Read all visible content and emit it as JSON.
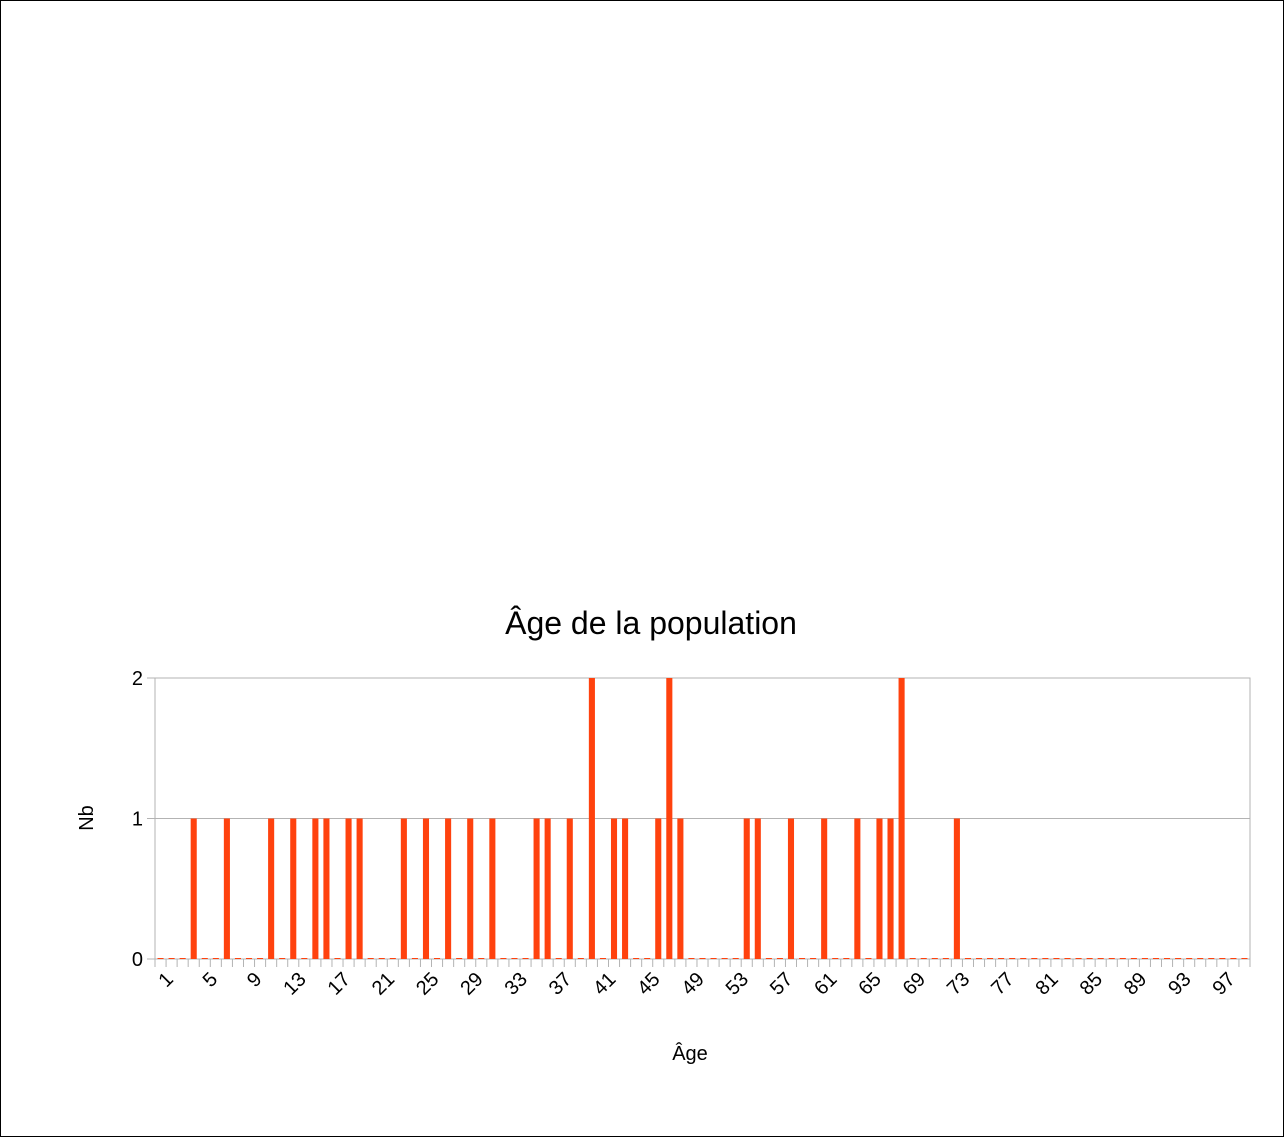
{
  "chart_data": {
    "type": "bar",
    "title": "Âge de la population",
    "xlabel": "Âge",
    "ylabel": "Nb",
    "categories": [
      1,
      2,
      3,
      4,
      5,
      6,
      7,
      8,
      9,
      10,
      11,
      12,
      13,
      14,
      15,
      16,
      17,
      18,
      19,
      20,
      21,
      22,
      23,
      24,
      25,
      26,
      27,
      28,
      29,
      30,
      31,
      32,
      33,
      34,
      35,
      36,
      37,
      38,
      39,
      40,
      41,
      42,
      43,
      44,
      45,
      46,
      47,
      48,
      49,
      50,
      51,
      52,
      53,
      54,
      55,
      56,
      57,
      58,
      59,
      60,
      61,
      62,
      63,
      64,
      65,
      66,
      67,
      68,
      69,
      70,
      71,
      72,
      73,
      74,
      75,
      76,
      77,
      78,
      79,
      80,
      81,
      82,
      83,
      84,
      85,
      86,
      87,
      88,
      89,
      90,
      91,
      92,
      93,
      94,
      95,
      96,
      97,
      98,
      99
    ],
    "values": [
      0,
      0,
      0,
      1,
      0,
      0,
      1,
      0,
      0,
      0,
      1,
      0,
      1,
      0,
      1,
      1,
      0,
      1,
      1,
      0,
      0,
      0,
      1,
      0,
      1,
      0,
      1,
      0,
      1,
      0,
      1,
      0,
      0,
      0,
      1,
      1,
      0,
      1,
      0,
      2,
      0,
      1,
      1,
      0,
      0,
      1,
      2,
      1,
      0,
      0,
      0,
      0,
      0,
      1,
      1,
      0,
      0,
      1,
      0,
      0,
      1,
      0,
      0,
      1,
      0,
      1,
      1,
      2,
      0,
      0,
      0,
      0,
      1,
      0,
      0,
      0,
      0,
      0,
      0,
      0,
      0,
      0,
      0,
      0,
      0,
      0,
      0,
      0,
      0,
      0,
      0,
      0,
      0,
      0,
      0,
      0,
      0,
      0,
      0
    ],
    "x_tick_labels": [
      "1",
      "5",
      "9",
      "13",
      "17",
      "21",
      "25",
      "29",
      "33",
      "37",
      "41",
      "45",
      "49",
      "53",
      "57",
      "61",
      "65",
      "69",
      "73",
      "77",
      "81",
      "85",
      "89",
      "93",
      "97"
    ],
    "y_tick_labels": [
      "0",
      "1",
      "2"
    ],
    "ylim": [
      0,
      2
    ],
    "grid": true,
    "legend": "none",
    "bar_color": "#ff420e",
    "grid_color": "#b3b3b3"
  }
}
